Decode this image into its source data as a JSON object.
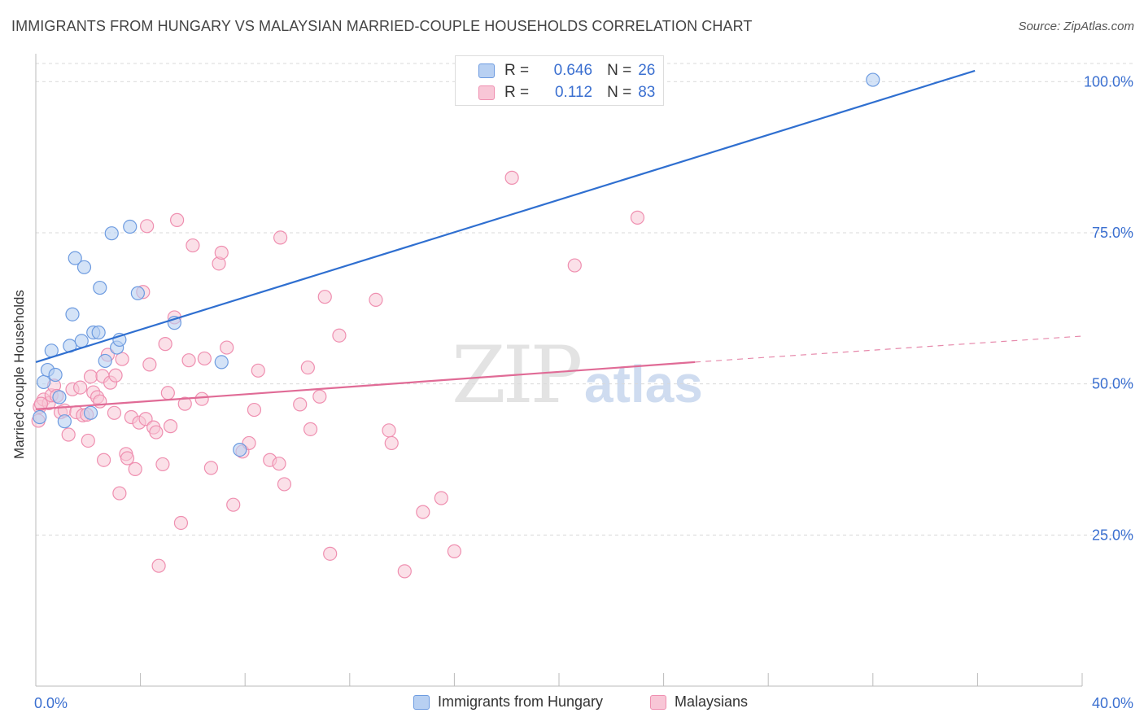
{
  "title": "IMMIGRANTS FROM HUNGARY VS MALAYSIAN MARRIED-COUPLE HOUSEHOLDS CORRELATION CHART",
  "source": "Source: ZipAtlas.com",
  "watermark": {
    "main": "ZIP",
    "sub": "atlas"
  },
  "legend_top": {
    "rows": [
      {
        "r_label": "R =",
        "r_value": "0.646",
        "n_label": "N =",
        "n_value": "26"
      },
      {
        "r_label": "R =",
        "r_value": "0.112",
        "n_label": "N =",
        "n_value": "83"
      }
    ]
  },
  "colors": {
    "blue_fill": "#b8d0f2",
    "blue_stroke": "#6d9be0",
    "blue_line": "#2f6fd0",
    "pink_fill": "#f8c6d6",
    "pink_stroke": "#ef8fb0",
    "pink_line": "#e06b96",
    "axis_text": "#3a6fd0",
    "grid": "#d9d9d9"
  },
  "chart_data": {
    "type": "scatter",
    "title": "IMMIGRANTS FROM HUNGARY VS MALAYSIAN MARRIED-COUPLE HOUSEHOLDS CORRELATION CHART",
    "xlabel": "",
    "ylabel": "Married-couple Households",
    "xlim": [
      0,
      40
    ],
    "ylim": [
      0,
      103
    ],
    "x_tick_labels": [
      "0.0%",
      "40.0%"
    ],
    "y_ticks": [
      25,
      50,
      75,
      100
    ],
    "y_tick_labels": [
      "25.0%",
      "50.0%",
      "75.0%",
      "100.0%"
    ],
    "grid": true,
    "legend_placement": "bottom",
    "series": [
      {
        "name": "Immigrants from Hungary",
        "color": "blue",
        "r": 0.646,
        "n": 26,
        "trend": {
          "x": [
            0,
            35.9
          ],
          "y": [
            53.6,
            101.8
          ]
        },
        "points": [
          [
            0.15,
            44.5
          ],
          [
            0.3,
            50.3
          ],
          [
            0.45,
            52.3
          ],
          [
            0.6,
            55.5
          ],
          [
            0.75,
            51.5
          ],
          [
            0.9,
            47.8
          ],
          [
            1.1,
            43.8
          ],
          [
            1.3,
            56.3
          ],
          [
            1.4,
            61.5
          ],
          [
            1.5,
            70.8
          ],
          [
            1.75,
            57.1
          ],
          [
            1.85,
            69.3
          ],
          [
            2.1,
            45.2
          ],
          [
            2.2,
            58.5
          ],
          [
            2.4,
            58.5
          ],
          [
            2.45,
            65.9
          ],
          [
            2.65,
            53.8
          ],
          [
            2.9,
            74.9
          ],
          [
            3.1,
            56.0
          ],
          [
            3.2,
            57.3
          ],
          [
            3.6,
            76.0
          ],
          [
            3.9,
            65.0
          ],
          [
            5.3,
            60.1
          ],
          [
            7.1,
            53.6
          ],
          [
            7.8,
            39.1
          ],
          [
            32.0,
            100.3
          ]
        ]
      },
      {
        "name": "Malaysians",
        "color": "pink",
        "r": 0.112,
        "n": 83,
        "trend": {
          "x": [
            0,
            25.2
          ],
          "y": [
            45.8,
            53.6
          ]
        },
        "trend_dashed": {
          "x": [
            25.2,
            40
          ],
          "y": [
            53.6,
            57.9
          ]
        },
        "points": [
          [
            0.1,
            43.9
          ],
          [
            0.15,
            46.2
          ],
          [
            0.3,
            47.4
          ],
          [
            0.5,
            46.8
          ],
          [
            0.6,
            48.1
          ],
          [
            0.7,
            49.7
          ],
          [
            0.8,
            48.0
          ],
          [
            0.95,
            45.3
          ],
          [
            1.1,
            45.6
          ],
          [
            1.25,
            41.6
          ],
          [
            1.4,
            49.1
          ],
          [
            1.55,
            45.3
          ],
          [
            1.7,
            49.4
          ],
          [
            1.8,
            44.8
          ],
          [
            1.95,
            44.9
          ],
          [
            2.0,
            40.6
          ],
          [
            2.1,
            51.2
          ],
          [
            2.2,
            48.6
          ],
          [
            2.35,
            47.8
          ],
          [
            2.45,
            47.1
          ],
          [
            2.55,
            51.3
          ],
          [
            2.6,
            37.4
          ],
          [
            2.75,
            54.8
          ],
          [
            2.85,
            50.2
          ],
          [
            3.0,
            45.2
          ],
          [
            3.05,
            51.4
          ],
          [
            3.2,
            31.9
          ],
          [
            3.3,
            54.1
          ],
          [
            3.45,
            38.4
          ],
          [
            3.5,
            37.7
          ],
          [
            3.65,
            44.5
          ],
          [
            3.8,
            35.9
          ],
          [
            3.95,
            43.6
          ],
          [
            4.1,
            65.2
          ],
          [
            4.2,
            44.2
          ],
          [
            4.25,
            76.1
          ],
          [
            4.35,
            53.2
          ],
          [
            4.5,
            42.8
          ],
          [
            4.6,
            42.0
          ],
          [
            4.7,
            19.9
          ],
          [
            4.85,
            36.7
          ],
          [
            4.95,
            56.6
          ],
          [
            5.05,
            48.5
          ],
          [
            5.15,
            43.0
          ],
          [
            5.3,
            61.0
          ],
          [
            5.4,
            77.1
          ],
          [
            5.55,
            27.0
          ],
          [
            5.7,
            46.7
          ],
          [
            5.85,
            53.9
          ],
          [
            6.0,
            72.9
          ],
          [
            6.35,
            47.5
          ],
          [
            6.45,
            54.2
          ],
          [
            6.7,
            36.1
          ],
          [
            7.0,
            69.9
          ],
          [
            7.1,
            71.7
          ],
          [
            7.3,
            56.0
          ],
          [
            7.55,
            30.0
          ],
          [
            7.9,
            38.8
          ],
          [
            8.15,
            40.2
          ],
          [
            8.35,
            45.7
          ],
          [
            8.5,
            52.2
          ],
          [
            8.95,
            37.4
          ],
          [
            9.3,
            36.8
          ],
          [
            9.35,
            74.2
          ],
          [
            9.5,
            33.4
          ],
          [
            10.1,
            46.6
          ],
          [
            10.4,
            52.7
          ],
          [
            10.5,
            42.5
          ],
          [
            10.85,
            47.9
          ],
          [
            11.05,
            64.4
          ],
          [
            11.25,
            21.9
          ],
          [
            11.6,
            58.0
          ],
          [
            13.0,
            63.9
          ],
          [
            13.5,
            42.3
          ],
          [
            13.6,
            40.2
          ],
          [
            14.1,
            19.0
          ],
          [
            14.8,
            28.8
          ],
          [
            15.5,
            31.1
          ],
          [
            16.0,
            22.3
          ],
          [
            18.2,
            84.1
          ],
          [
            20.6,
            69.6
          ],
          [
            23.0,
            77.5
          ],
          [
            0.2,
            46.7
          ]
        ]
      }
    ]
  }
}
